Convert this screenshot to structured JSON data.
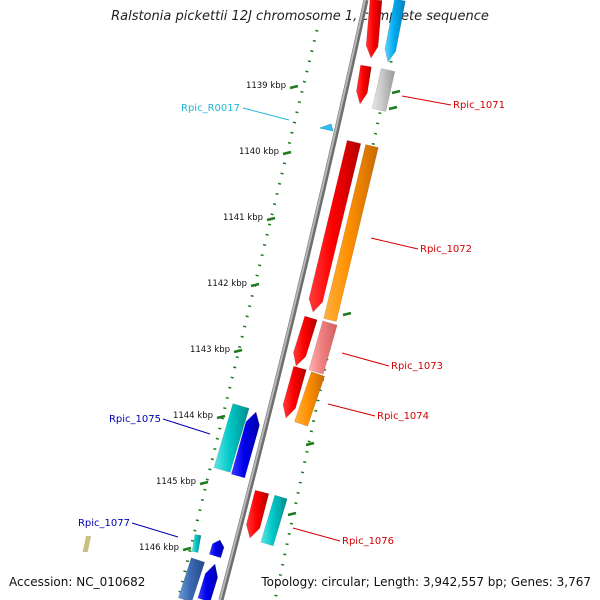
{
  "title": "Ralstonia pickettii 12J chromosome 1, complete sequence",
  "footer": {
    "accession": "Accession: NC_010682",
    "summary": "Topology: circular; Length: 3,942,557 bp; Genes: 3,767"
  },
  "colors": {
    "backbone": "#8a8a8a",
    "ticks": "#1e7a1e",
    "label_right": "#d40000",
    "label_left": "#0000b0",
    "label_rna": "#22b8d8"
  },
  "scale": {
    "unit": "kbp",
    "ticks": [
      {
        "label": "1139 kbp",
        "kbp": 1139
      },
      {
        "label": "1140 kbp",
        "kbp": 1140
      },
      {
        "label": "1141 kbp",
        "kbp": 1141
      },
      {
        "label": "1142 kbp",
        "kbp": 1142
      },
      {
        "label": "1143 kbp",
        "kbp": 1143
      },
      {
        "label": "1144 kbp",
        "kbp": 1144
      },
      {
        "label": "1145 kbp",
        "kbp": 1145
      },
      {
        "label": "1146 kbp",
        "kbp": 1146
      }
    ]
  },
  "gene_labels": [
    {
      "text": "Rpic_1071",
      "color": "#d40000"
    },
    {
      "text": "Rpic_R0017",
      "color": "#22b8d8"
    },
    {
      "text": "Rpic_1072",
      "color": "#d40000"
    },
    {
      "text": "Rpic_1073",
      "color": "#d40000"
    },
    {
      "text": "Rpic_1074",
      "color": "#d40000"
    },
    {
      "text": "Rpic_1075",
      "color": "#0000b0"
    },
    {
      "text": "Rpic_1076",
      "color": "#d40000"
    },
    {
      "text": "Rpic_1077",
      "color": "#0000b0"
    }
  ]
}
